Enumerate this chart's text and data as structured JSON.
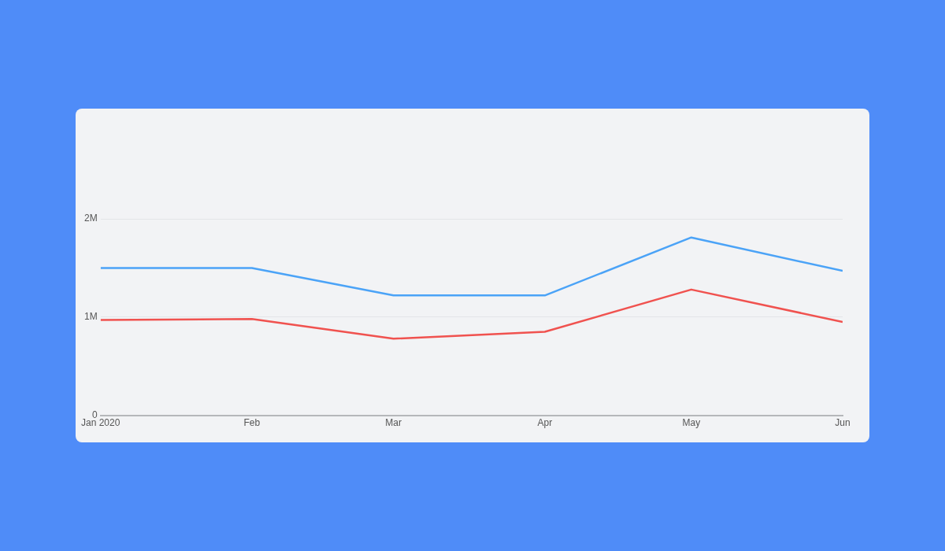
{
  "chart_data": {
    "type": "line",
    "x": [
      "2020-01-01",
      "2020-02-01",
      "2020-03-01",
      "2020-04-01",
      "2020-05-01",
      "2020-06-01"
    ],
    "xlim": [
      "2020-01-01",
      "2020-06-01"
    ],
    "xticks": [
      {
        "value": "2020-01-01",
        "label": "Jan 2020"
      },
      {
        "value": "2020-02-01",
        "label": "Feb"
      },
      {
        "value": "2020-03-01",
        "label": "Mar"
      },
      {
        "value": "2020-04-01",
        "label": "Apr"
      },
      {
        "value": "2020-05-01",
        "label": "May"
      },
      {
        "value": "2020-06-01",
        "label": "Jun"
      }
    ],
    "series": [
      {
        "color": "#4ba3f7",
        "values": [
          1500000,
          1500000,
          1220000,
          1220000,
          1810000,
          1470000
        ]
      },
      {
        "color": "#f0524f",
        "values": [
          970000,
          980000,
          780000,
          850000,
          1280000,
          950000
        ]
      }
    ],
    "ylim": [
      0,
      2000000
    ],
    "yticks": [
      0,
      {
        "value": 1000000,
        "label": "1M"
      },
      {
        "value": 2000000,
        "label": "2M"
      }
    ],
    "grid": "y",
    "legend": false,
    "marker": "none",
    "line_style": "solid"
  }
}
